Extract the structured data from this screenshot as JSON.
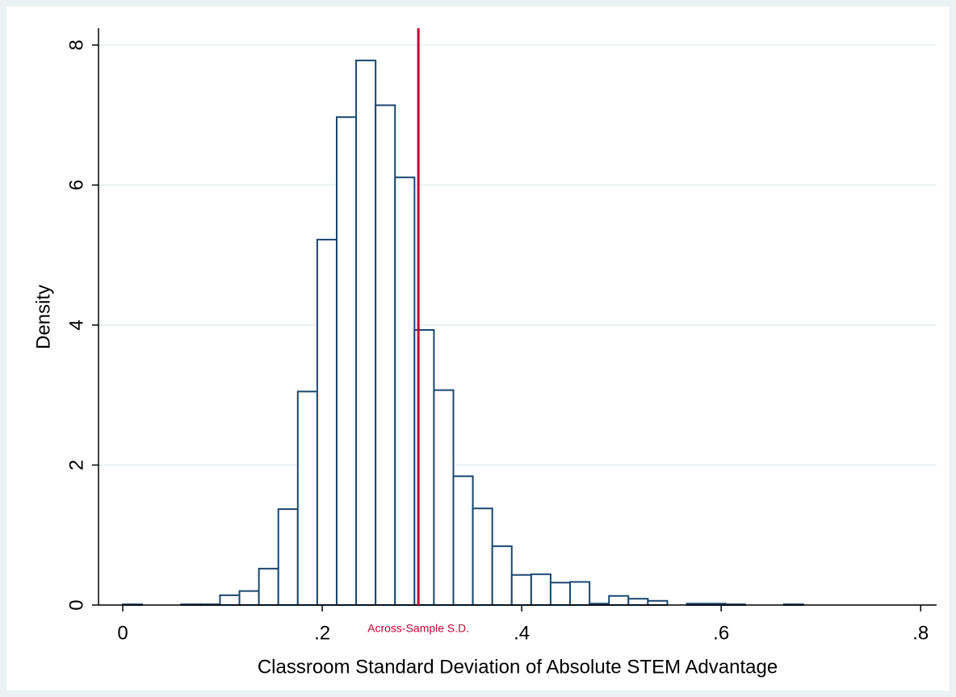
{
  "chart_data": {
    "type": "histogram",
    "xlabel": "Classroom Standard Deviation of Absolute STEM Advantage",
    "ylabel": "Density",
    "bins": [
      0,
      0.0195,
      0.039,
      0.0585,
      0.078,
      0.0975,
      0.117,
      0.1365,
      0.156,
      0.1755,
      0.195,
      0.2145,
      0.234,
      0.2535,
      0.273,
      0.2925,
      0.312,
      0.3315,
      0.351,
      0.3705,
      0.39,
      0.4095,
      0.429,
      0.4485,
      0.468,
      0.4875,
      0.507,
      0.5265,
      0.546,
      0.5655,
      0.585,
      0.6045,
      0.624,
      0.6435,
      0.663,
      0.6825
    ],
    "values": [
      0.01,
      0,
      0,
      0.01,
      0.01,
      0.14,
      0.2,
      0.52,
      1.37,
      3.05,
      5.22,
      6.97,
      7.78,
      7.14,
      6.11,
      3.93,
      3.07,
      1.84,
      1.38,
      0.84,
      0.43,
      0.44,
      0.32,
      0.33,
      0.02,
      0.13,
      0.09,
      0.06,
      0,
      0.02,
      0.02,
      0.01,
      0,
      0,
      0.01
    ],
    "color": "#1a476f",
    "xlim": [
      -0.0243,
      0.816
    ],
    "xticks": [
      0,
      {
        "value": 0.2,
        "label": ".2"
      },
      {
        "value": 0.4,
        "label": ".4"
      },
      {
        "value": 0.6,
        "label": ".6"
      },
      {
        "value": 0.8,
        "label": ".8"
      }
    ],
    "ylim": [
      0,
      8.24
    ],
    "yticks": [
      0,
      2,
      4,
      6,
      8
    ],
    "grid": true,
    "reference_line": {
      "x": 0.2964,
      "label": "Across-Sample S.D.",
      "color": "#c10534"
    }
  }
}
